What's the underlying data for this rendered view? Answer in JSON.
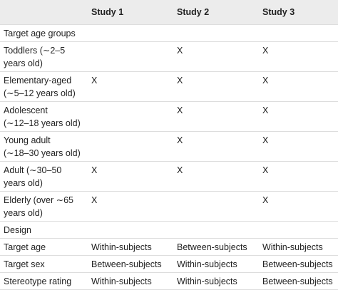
{
  "header": {
    "columns": [
      "Study 1",
      "Study 2",
      "Study 3"
    ]
  },
  "rows": [
    {
      "label": [
        "Target age groups"
      ]
    },
    {
      "label": [
        "Toddlers (∼2–5",
        "years old)"
      ],
      "cells": [
        null,
        "X",
        "X"
      ]
    },
    {
      "label": [
        "Elementary-aged",
        "(∼5–12 years old)"
      ],
      "cells": [
        "X",
        "X",
        "X"
      ]
    },
    {
      "label": [
        "Adolescent",
        "(∼12–18 years old)"
      ],
      "cells": [
        null,
        "X",
        "X"
      ]
    },
    {
      "label": [
        "Young adult",
        "(∼18–30 years old)"
      ],
      "cells": [
        null,
        "X",
        "X"
      ]
    },
    {
      "label": [
        "Adult (∼30–50",
        "years old)"
      ],
      "cells": [
        "X",
        "X",
        "X"
      ]
    },
    {
      "label": [
        "Elderly (over ∼65",
        "years old)"
      ],
      "cells": [
        "X",
        null,
        "X"
      ]
    },
    {
      "label": [
        "Design"
      ]
    },
    {
      "label": [
        "Target age"
      ],
      "cells": [
        "Within-subjects",
        "Between-subjects",
        "Within-subjects"
      ]
    },
    {
      "label": [
        "Target sex"
      ],
      "cells": [
        "Between-subjects",
        "Within-subjects",
        "Between-subjects"
      ]
    },
    {
      "label": [
        "Stereotype rating"
      ],
      "cells": [
        "Within-subjects",
        "Within-subjects",
        "Between-subjects"
      ]
    }
  ]
}
